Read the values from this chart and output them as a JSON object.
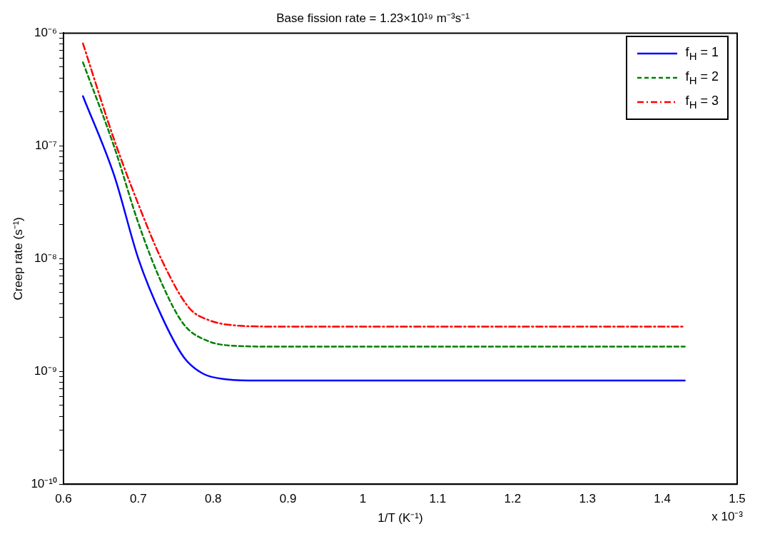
{
  "chart_data": {
    "type": "line",
    "title": "Base fission rate = 1.23×10¹⁹ m⁻³s⁻¹",
    "xlabel": "1/T (K⁻¹)",
    "ylabel": "Creep rate (s⁻¹)",
    "annotations": [
      "x 10⁻³"
    ],
    "log": "y",
    "grid": false,
    "legend": "top right",
    "marker": "none",
    "xlim": [
      0.6,
      1.5
    ],
    "xticks": [
      0.6,
      0.7,
      0.8,
      0.9,
      1,
      1.1,
      1.2,
      1.3,
      1.4,
      1.5
    ],
    "ylim": [
      1e-10,
      1e-06
    ],
    "yticks": [
      {
        "value": 1e-10,
        "label": "10⁻¹⁰"
      },
      {
        "value": 2e-10,
        "label": null
      },
      {
        "value": 3e-10,
        "label": null
      },
      {
        "value": 4e-10,
        "label": null
      },
      {
        "value": 5e-10,
        "label": null
      },
      {
        "value": 6e-10,
        "label": null
      },
      {
        "value": 7e-10,
        "label": null
      },
      {
        "value": 8e-10,
        "label": null
      },
      {
        "value": 9e-10,
        "label": null
      },
      {
        "value": 1e-09,
        "label": "10⁻⁹"
      },
      {
        "value": 2e-09,
        "label": null
      },
      {
        "value": 3e-09,
        "label": null
      },
      {
        "value": 4e-09,
        "label": null
      },
      {
        "value": 5e-09,
        "label": null
      },
      {
        "value": 6e-09,
        "label": null
      },
      {
        "value": 7e-09,
        "label": null
      },
      {
        "value": 8e-09,
        "label": null
      },
      {
        "value": 9e-09,
        "label": null
      },
      {
        "value": 1e-08,
        "label": "10⁻⁸"
      },
      {
        "value": 2e-08,
        "label": null
      },
      {
        "value": 3e-08,
        "label": null
      },
      {
        "value": 4e-08,
        "label": null
      },
      {
        "value": 5e-08,
        "label": null
      },
      {
        "value": 6e-08,
        "label": null
      },
      {
        "value": 7e-08,
        "label": null
      },
      {
        "value": 8e-08,
        "label": null
      },
      {
        "value": 9e-08,
        "label": null
      },
      {
        "value": 1e-07,
        "label": "10⁻⁷"
      },
      {
        "value": 2e-07,
        "label": null
      },
      {
        "value": 3e-07,
        "label": null
      },
      {
        "value": 4e-07,
        "label": null
      },
      {
        "value": 5e-07,
        "label": null
      },
      {
        "value": 6e-07,
        "label": null
      },
      {
        "value": 7e-07,
        "label": null
      },
      {
        "value": 8e-07,
        "label": null
      },
      {
        "value": 9e-07,
        "label": null
      },
      {
        "value": 1e-06,
        "label": "10⁻⁶"
      }
    ],
    "series": [
      {
        "name": "f$_{H}$ = 1",
        "color": "#0000ff",
        "line_style": "solid",
        "x": [
          0.626,
          0.668,
          0.7,
          0.732,
          0.761,
          0.787,
          0.819,
          0.86,
          1.0,
          1.2,
          1.43
        ],
        "values": [
          2.76e-07,
          5.4e-08,
          1e-08,
          3e-09,
          1.33e-09,
          9.5e-10,
          8.5e-10,
          8.3e-10,
          8.3e-10,
          8.3e-10,
          8.3e-10
        ]
      },
      {
        "name": "f$_{H}$ = 2",
        "color": "#008000",
        "line_style": "dashed",
        "x": [
          0.626,
          0.668,
          0.7,
          0.732,
          0.761,
          0.793,
          0.835,
          0.88,
          1.0,
          1.2,
          1.43
        ],
        "values": [
          5.5e-07,
          9.7e-08,
          2.07e-08,
          5.9e-09,
          2.6e-09,
          1.86e-09,
          1.68e-09,
          1.66e-09,
          1.66e-09,
          1.66e-09,
          1.66e-09
        ]
      },
      {
        "name": "f$_{H}$ = 3",
        "color": "#ff0000",
        "line_style": "dashdot",
        "x": [
          0.626,
          0.668,
          0.7,
          0.732,
          0.768,
          0.793,
          0.835,
          0.88,
          1.0,
          1.2,
          1.43
        ],
        "values": [
          8.1e-07,
          1.12e-07,
          3.04e-08,
          9.5e-09,
          3.65e-09,
          2.87e-09,
          2.54e-09,
          2.5e-09,
          2.5e-09,
          2.5e-09,
          2.5e-09
        ]
      }
    ]
  }
}
